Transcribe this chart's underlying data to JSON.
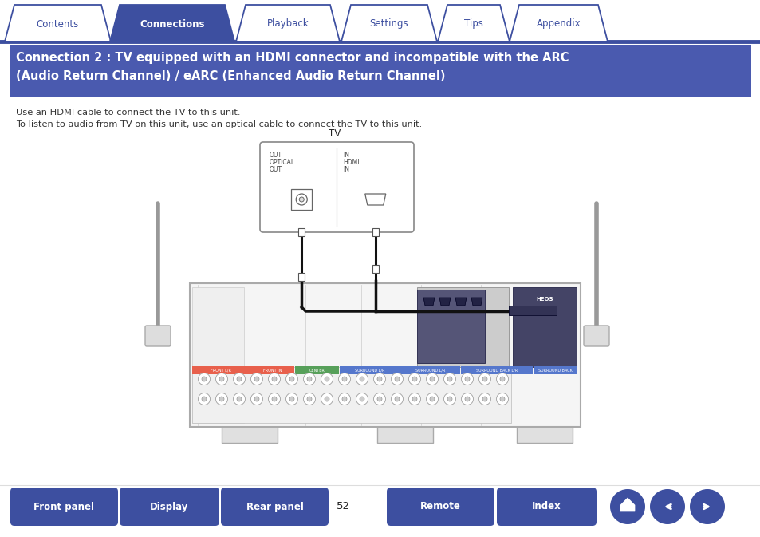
{
  "bg_color": "#ffffff",
  "tab_labels": [
    "Contents",
    "Connections",
    "Playback",
    "Settings",
    "Tips",
    "Appendix"
  ],
  "tab_active_idx": 1,
  "tab_active_color": "#3d4fa0",
  "tab_inactive_color": "#ffffff",
  "tab_text_active_color": "#ffffff",
  "tab_text_inactive_color": "#3d4fa0",
  "tab_border_color": "#3d4fa0",
  "header_bg": "#4a5aaf",
  "header_line1": "Connection 2 : TV equipped with an HDMI connector and incompatible with the ARC",
  "header_line2": "(Audio Return Channel) / eARC (Enhanced Audio Return Channel)",
  "header_text_color": "#ffffff",
  "body_line1": "Use an HDMI cable to connect the TV to this unit.",
  "body_line2": "To listen to audio from TV on this unit, use an optical cable to connect the TV to this unit.",
  "body_text_color": "#333333",
  "tv_label": "TV",
  "bottom_buttons": [
    "Front panel",
    "Display",
    "Rear panel",
    "Remote",
    "Index"
  ],
  "page_number": "52",
  "btn_color": "#3d4fa0",
  "btn_text_color": "#ffffff",
  "nav_bar_color": "#3d4fa0",
  "diagram_line_color": "#333333",
  "receiver_bg": "#f5f5f5",
  "receiver_border": "#aaaaaa",
  "cable_color": "#111111",
  "tv_box_color": "#ffffff",
  "tv_box_border": "#888888"
}
